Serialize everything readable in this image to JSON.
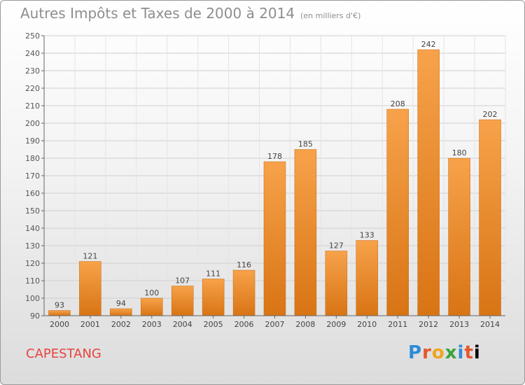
{
  "title": "Autres Impôts et Taxes de 2000 à 2014",
  "unit_note": "(en milliers d'€)",
  "commune": "CAPESTANG",
  "logo_letters": [
    "P",
    "r",
    "o",
    "x",
    "i",
    "t",
    "i"
  ],
  "colors": {
    "bar_light": "#f7a24a",
    "bar_dark": "#d87414",
    "grid": "#cfcfcf",
    "title": "#8e8e8e",
    "commune": "#e8433f"
  },
  "chart_data": {
    "type": "bar",
    "categories": [
      "2000",
      "2001",
      "2002",
      "2003",
      "2004",
      "2005",
      "2006",
      "2007",
      "2008",
      "2009",
      "2010",
      "2011",
      "2012",
      "2013",
      "2014"
    ],
    "values": [
      93,
      121,
      94,
      100,
      107,
      111,
      116,
      178,
      185,
      127,
      133,
      208,
      242,
      180,
      202
    ],
    "ylim": [
      90,
      250
    ],
    "yticks": [
      90,
      100,
      110,
      120,
      130,
      140,
      150,
      160,
      170,
      180,
      190,
      200,
      210,
      220,
      230,
      240,
      250
    ],
    "grid": true,
    "legend": "none"
  }
}
